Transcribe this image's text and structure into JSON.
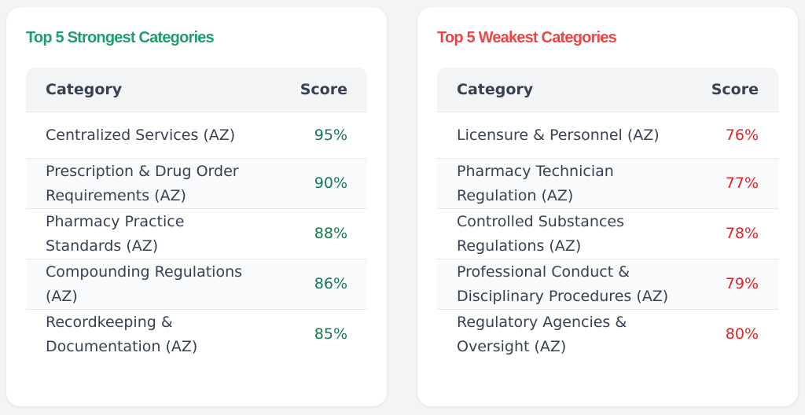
{
  "strongest": {
    "title": "Top 5 Strongest Categories",
    "headers": {
      "category": "Category",
      "score": "Score"
    },
    "rows": [
      {
        "category": "Centralized Services (AZ)",
        "score": "95%"
      },
      {
        "category": "Prescription & Drug Order Requirements (AZ)",
        "score": "90%"
      },
      {
        "category": "Pharmacy Practice Standards (AZ)",
        "score": "88%"
      },
      {
        "category": "Compounding Regulations (AZ)",
        "score": "86%"
      },
      {
        "category": "Recordkeeping & Documentation (AZ)",
        "score": "85%"
      }
    ],
    "color": "#1f9e6a"
  },
  "weakest": {
    "title": "Top 5 Weakest Categories",
    "headers": {
      "category": "Category",
      "score": "Score"
    },
    "rows": [
      {
        "category": "Licensure & Personnel (AZ)",
        "score": "76%"
      },
      {
        "category": "Pharmacy Technician Regulation (AZ)",
        "score": "77%"
      },
      {
        "category": "Controlled Substances Regulations (AZ)",
        "score": "78%"
      },
      {
        "category": "Professional Conduct & Disciplinary Procedures (AZ)",
        "score": "79%"
      },
      {
        "category": "Regulatory Agencies & Oversight (AZ)",
        "score": "80%"
      }
    ],
    "color": "#ef4444"
  }
}
